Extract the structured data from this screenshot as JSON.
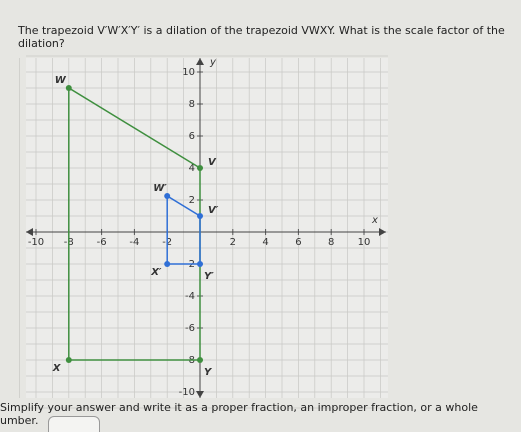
{
  "question": {
    "lines": [
      "The trapezoid V′W′X′Y′ is a dilation of the trapezoid VWXY. What is the scale factor of the",
      "dilation?"
    ]
  },
  "graph": {
    "x_label": "x",
    "y_label": "y",
    "xlim": [
      -10,
      10
    ],
    "ylim": [
      -10,
      10
    ],
    "xticks": [
      -10,
      -8,
      -6,
      -4,
      -2,
      2,
      4,
      6,
      8,
      10
    ],
    "yticks": [
      10,
      8,
      6,
      4,
      2,
      -2,
      -4,
      -6,
      -8,
      -10
    ],
    "shapes": [
      {
        "color": "#3f8f3f",
        "points": [
          {
            "label": "V",
            "x": 0,
            "y": 4
          },
          {
            "label": "W",
            "x": -8,
            "y": 9
          },
          {
            "label": "X",
            "x": -8,
            "y": -8
          },
          {
            "label": "Y",
            "x": 0,
            "y": -8
          }
        ]
      },
      {
        "color": "#2f6fd6",
        "points": [
          {
            "label": "V′",
            "x": 0,
            "y": 1
          },
          {
            "label": "W′",
            "x": -2,
            "y": 2.25
          },
          {
            "label": "X′",
            "x": -2,
            "y": -2
          },
          {
            "label": "Y′",
            "x": 0,
            "y": -2
          }
        ]
      }
    ]
  },
  "instruction": {
    "lines": [
      "Simplify your answer and write it as a proper fraction, an improper fraction, or a whole",
      "umber."
    ]
  }
}
